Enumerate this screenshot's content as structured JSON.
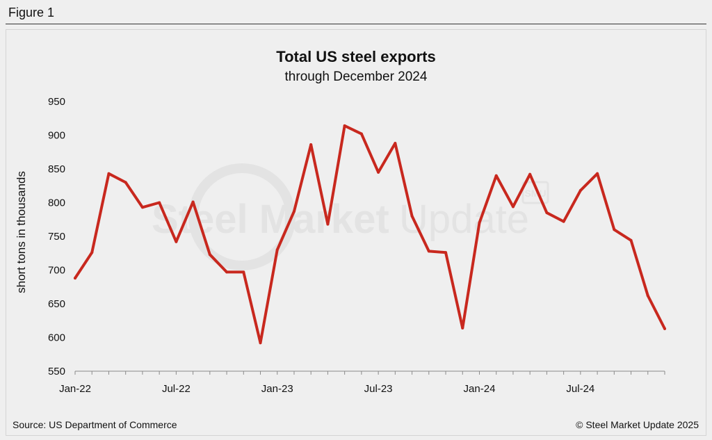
{
  "figure_label": "Figure 1",
  "chart_data": {
    "type": "line",
    "title": "Total US steel exports",
    "subtitle": "through December 2024",
    "xlabel": "",
    "ylabel": "short tons in thousands",
    "ylim": [
      550,
      950
    ],
    "yticks": [
      550,
      600,
      650,
      700,
      750,
      800,
      850,
      900,
      950
    ],
    "x_tick_labels": [
      {
        "index": 0,
        "label": "Jan-22"
      },
      {
        "index": 6,
        "label": "Jul-22"
      },
      {
        "index": 12,
        "label": "Jan-23"
      },
      {
        "index": 18,
        "label": "Jul-23"
      },
      {
        "index": 24,
        "label": "Jan-24"
      },
      {
        "index": 30,
        "label": "Jul-24"
      }
    ],
    "series": [
      {
        "name": "Total US steel exports",
        "color": "#c8281e",
        "values": [
          688,
          726,
          843,
          830,
          793,
          800,
          742,
          801,
          723,
          697,
          697,
          592,
          730,
          787,
          886,
          768,
          914,
          902,
          845,
          888,
          780,
          728,
          726,
          614,
          770,
          840,
          794,
          842,
          785,
          772,
          818,
          843,
          760,
          744,
          662,
          613
        ]
      }
    ],
    "grid": false,
    "legend": "none"
  },
  "watermark": {
    "bold": "Steel Market",
    "light": "Update",
    "logo": "SMU"
  },
  "footer": {
    "source": "Source: US Department of Commerce",
    "copyright": "© Steel Market Update 2025"
  }
}
